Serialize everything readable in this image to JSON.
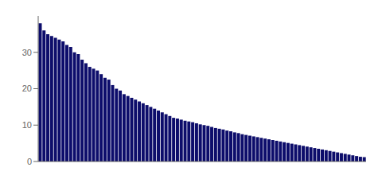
{
  "chart_data": {
    "type": "bar",
    "categories": [
      null,
      null,
      null,
      null,
      null,
      null,
      null,
      null,
      null,
      null,
      null,
      null,
      null,
      null,
      null,
      null,
      null,
      null,
      null,
      null,
      null,
      null,
      null,
      null,
      null,
      null,
      null,
      null,
      null,
      null,
      null,
      null,
      null,
      null,
      null,
      null,
      null,
      null,
      null,
      null,
      null,
      null,
      null,
      null,
      null,
      null,
      null,
      null,
      null,
      null,
      null,
      null,
      null,
      null,
      null,
      null,
      null,
      null,
      null,
      null,
      null,
      null,
      null,
      null,
      null,
      null,
      null,
      null,
      null,
      null,
      null,
      null,
      null,
      null,
      null,
      null,
      null,
      null,
      null,
      null,
      null,
      null,
      null,
      null,
      null,
      null
    ],
    "values": [
      38,
      36,
      35,
      34.5,
      34,
      33.5,
      33,
      32,
      31.5,
      30,
      29.5,
      28,
      27,
      26,
      25.5,
      25,
      24,
      23,
      22.5,
      21,
      20,
      19.5,
      18.5,
      18,
      17.5,
      17,
      16.5,
      16,
      15.5,
      15,
      14.5,
      14,
      13.5,
      13,
      12.5,
      12,
      11.8,
      11.5,
      11.2,
      11,
      10.8,
      10.5,
      10.2,
      10,
      9.8,
      9.5,
      9.2,
      9.0,
      8.8,
      8.5,
      8.3,
      8.0,
      7.8,
      7.5,
      7.3,
      7.1,
      6.9,
      6.7,
      6.5,
      6.3,
      6.1,
      5.9,
      5.7,
      5.5,
      5.3,
      5.1,
      4.9,
      4.7,
      4.5,
      4.3,
      4.1,
      3.9,
      3.7,
      3.5,
      3.3,
      3.1,
      2.9,
      2.7,
      2.5,
      2.3,
      2.1,
      1.9,
      1.7,
      1.5,
      1.3,
      1.2
    ],
    "color": "#0d0d6b",
    "ylim": [
      0,
      40
    ],
    "yticks": [
      0,
      10,
      20,
      30
    ],
    "tick_labels": "y"
  }
}
